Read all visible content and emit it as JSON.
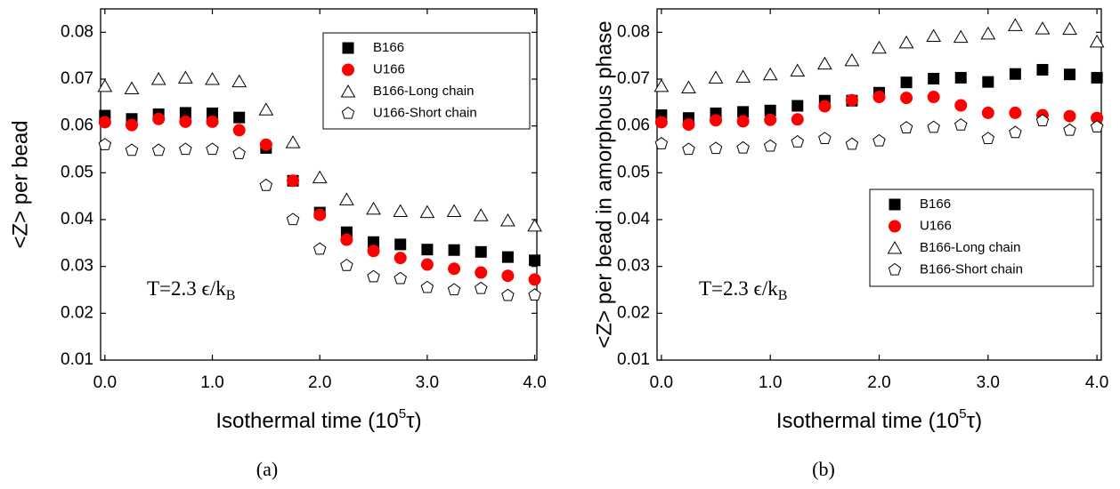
{
  "chart_data": [
    {
      "type": "scatter",
      "caption": "(a)",
      "x_label": {
        "text": "Isothermal time (10",
        "sup": "5",
        "tail": "τ)"
      },
      "y_label": "<Z> per bead",
      "annotation": {
        "text": "T=2.3 ϵ/k",
        "sub": "B"
      },
      "legend": "upper right",
      "x": [
        0,
        0.25,
        0.5,
        0.75,
        1.0,
        1.25,
        1.5,
        1.75,
        2.0,
        2.25,
        2.5,
        2.75,
        3.0,
        3.25,
        3.5,
        3.75,
        4.0
      ],
      "xlim": [
        -0.04,
        4.02
      ],
      "xticks": [
        {
          "value": 0,
          "label": "0.0"
        },
        {
          "value": 1,
          "label": "1.0"
        },
        {
          "value": 2,
          "label": "2.0"
        },
        {
          "value": 3,
          "label": "3.0"
        },
        {
          "value": 4,
          "label": "4.0"
        }
      ],
      "ylim": [
        0.01,
        0.085
      ],
      "yticks": [
        0.01,
        0.02,
        0.03,
        0.04,
        0.05,
        0.06,
        0.07,
        0.08
      ],
      "series": [
        {
          "name": "B166",
          "color": "#000000",
          "marker": "square",
          "filled": true,
          "values": [
            0.0622,
            0.0615,
            0.0625,
            0.0628,
            0.0627,
            0.0618,
            0.0553,
            0.0483,
            0.0415,
            0.0373,
            0.0352,
            0.0347,
            0.0336,
            0.0335,
            0.0331,
            0.032,
            0.0313
          ]
        },
        {
          "name": "U166",
          "color": "#ff0000",
          "marker": "circle",
          "filled": true,
          "values": [
            0.0608,
            0.0602,
            0.0615,
            0.0609,
            0.0609,
            0.0591,
            0.056,
            0.0483,
            0.041,
            0.0357,
            0.0333,
            0.0318,
            0.0304,
            0.0295,
            0.0287,
            0.028,
            0.0272
          ]
        },
        {
          "name": "B166-Long chain",
          "color": "#000000",
          "marker": "triangle",
          "filled": false,
          "values": [
            0.0685,
            0.068,
            0.07,
            0.0703,
            0.07,
            0.0695,
            0.0635,
            0.0565,
            0.049,
            0.0443,
            0.0423,
            0.0418,
            0.0416,
            0.0418,
            0.0409,
            0.0398,
            0.0387
          ]
        },
        {
          "name": "U166-Short chain",
          "color": "#000000",
          "marker": "pentagon",
          "filled": false,
          "values": [
            0.056,
            0.0548,
            0.0548,
            0.055,
            0.055,
            0.0541,
            0.0473,
            0.04,
            0.0337,
            0.0302,
            0.0278,
            0.0274,
            0.0255,
            0.025,
            0.0253,
            0.0238,
            0.0239
          ]
        }
      ]
    },
    {
      "type": "scatter",
      "caption": "(b)",
      "x_label": {
        "text": "Isothermal time (10",
        "sup": "5",
        "tail": "τ)"
      },
      "y_label": "<Z> per bead in amorphous phase",
      "annotation": {
        "text": "T=2.3 ϵ/k",
        "sub": "B"
      },
      "legend": "center right",
      "x": [
        0,
        0.25,
        0.5,
        0.75,
        1.0,
        1.25,
        1.5,
        1.75,
        2.0,
        2.25,
        2.5,
        2.75,
        3.0,
        3.25,
        3.5,
        3.75,
        4.0
      ],
      "xlim": [
        -0.04,
        4.04
      ],
      "xticks": [
        {
          "value": 0,
          "label": "0.0"
        },
        {
          "value": 1,
          "label": "1.0"
        },
        {
          "value": 2,
          "label": "2.0"
        },
        {
          "value": 3,
          "label": "3.0"
        },
        {
          "value": 4,
          "label": "4.0"
        }
      ],
      "ylim": [
        0.01,
        0.085
      ],
      "yticks": [
        0.01,
        0.02,
        0.03,
        0.04,
        0.05,
        0.06,
        0.07,
        0.08
      ],
      "series": [
        {
          "name": "B166",
          "color": "#000000",
          "marker": "square",
          "filled": true,
          "values": [
            0.0623,
            0.0617,
            0.0627,
            0.063,
            0.0633,
            0.0643,
            0.0654,
            0.0654,
            0.0671,
            0.0693,
            0.0701,
            0.0703,
            0.0694,
            0.0711,
            0.072,
            0.071,
            0.0703
          ]
        },
        {
          "name": "U166",
          "color": "#ff0000",
          "marker": "circle",
          "filled": true,
          "values": [
            0.0608,
            0.0603,
            0.0612,
            0.061,
            0.0613,
            0.0614,
            0.0642,
            0.0655,
            0.0662,
            0.066,
            0.0662,
            0.0644,
            0.0628,
            0.0628,
            0.0623,
            0.0621,
            0.0617
          ]
        },
        {
          "name": "B166-Long chain",
          "color": "#000000",
          "marker": "triangle",
          "filled": false,
          "values": [
            0.0685,
            0.0682,
            0.0703,
            0.0705,
            0.071,
            0.0718,
            0.0733,
            0.074,
            0.0767,
            0.0778,
            0.0792,
            0.079,
            0.0797,
            0.0815,
            0.0808,
            0.0807,
            0.078
          ]
        },
        {
          "name": "B166-Short chain",
          "color": "#000000",
          "marker": "pentagon",
          "filled": false,
          "values": [
            0.0562,
            0.055,
            0.0552,
            0.0553,
            0.0557,
            0.0566,
            0.0573,
            0.0561,
            0.0568,
            0.0596,
            0.0597,
            0.0602,
            0.0573,
            0.0586,
            0.0611,
            0.0591,
            0.0598
          ]
        }
      ]
    }
  ]
}
